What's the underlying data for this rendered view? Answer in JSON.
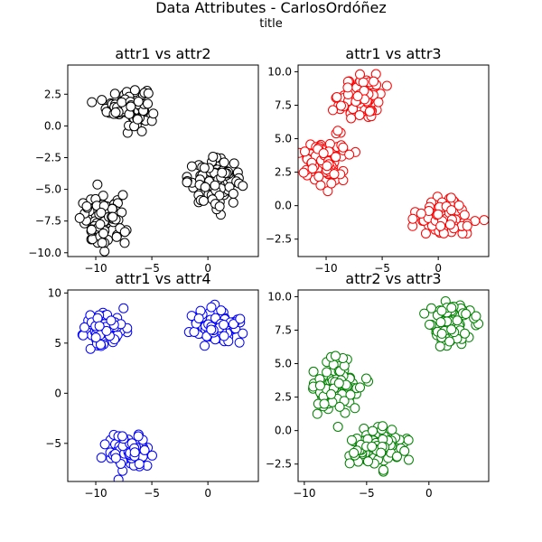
{
  "figure": {
    "suptitle": "Data Attributes - CarlosOrdóñez",
    "subtitle": "title"
  },
  "chart_data": [
    {
      "type": "scatter",
      "title": "attr1 vs attr2",
      "xlabel": "",
      "ylabel": "",
      "xlim": [
        -12.5,
        4.5
      ],
      "ylim": [
        -10.3,
        4.8
      ],
      "xticks": [
        -10,
        -5,
        0
      ],
      "yticks": [
        -10.0,
        -7.5,
        -5.0,
        -2.5,
        0.0,
        2.5
      ],
      "grid": false,
      "marker_color": "#000000",
      "clusters": [
        {
          "cx": -7.2,
          "cy": 1.6,
          "sx": 0.9,
          "sy": 0.75,
          "n": 95
        },
        {
          "cx": 0.6,
          "cy": -4.4,
          "sx": 1.2,
          "sy": 0.85,
          "n": 95
        },
        {
          "cx": -9.3,
          "cy": -7.6,
          "sx": 1.0,
          "sy": 1.0,
          "n": 95
        }
      ]
    },
    {
      "type": "scatter",
      "title": "attr1 vs attr3",
      "xlabel": "",
      "ylabel": "",
      "xlim": [
        -12.5,
        4.5
      ],
      "ylim": [
        -3.8,
        10.5
      ],
      "xticks": [
        -10,
        -5,
        0
      ],
      "yticks": [
        -2.5,
        0.0,
        2.5,
        5.0,
        7.5,
        10.0
      ],
      "grid": false,
      "marker_color": "#ff0000",
      "clusters": [
        {
          "cx": -7.0,
          "cy": 8.0,
          "sx": 0.95,
          "sy": 0.85,
          "n": 95
        },
        {
          "cx": -10.2,
          "cy": 3.3,
          "sx": 1.0,
          "sy": 0.85,
          "n": 95
        },
        {
          "cx": 0.6,
          "cy": -0.9,
          "sx": 1.3,
          "sy": 0.75,
          "n": 95
        }
      ]
    },
    {
      "type": "scatter",
      "title": "attr1 vs attr4",
      "xlabel": "",
      "ylabel": "",
      "xlim": [
        -12.5,
        4.5
      ],
      "ylim": [
        -8.8,
        10.3
      ],
      "xticks": [
        -10,
        -5,
        0
      ],
      "yticks": [
        -5,
        0,
        5,
        10
      ],
      "grid": false,
      "marker_color": "#0000ff",
      "clusters": [
        {
          "cx": -9.3,
          "cy": 6.3,
          "sx": 0.95,
          "sy": 0.85,
          "n": 95
        },
        {
          "cx": 0.8,
          "cy": 6.6,
          "sx": 1.05,
          "sy": 0.85,
          "n": 95
        },
        {
          "cx": -7.0,
          "cy": -5.8,
          "sx": 0.95,
          "sy": 0.85,
          "n": 95
        }
      ]
    },
    {
      "type": "scatter",
      "title": "attr2 vs attr3",
      "xlabel": "",
      "ylabel": "",
      "xlim": [
        -10.5,
        4.8
      ],
      "ylim": [
        -3.8,
        10.5
      ],
      "xticks": [
        -10,
        -5,
        0
      ],
      "yticks": [
        -2.5,
        0.0,
        2.5,
        5.0,
        7.5,
        10.0
      ],
      "grid": false,
      "marker_color": "#008000",
      "clusters": [
        {
          "cx": 1.6,
          "cy": 7.9,
          "sx": 0.85,
          "sy": 0.85,
          "n": 95
        },
        {
          "cx": -7.4,
          "cy": 3.3,
          "sx": 0.95,
          "sy": 0.9,
          "n": 95
        },
        {
          "cx": -4.3,
          "cy": -1.2,
          "sx": 1.1,
          "sy": 0.8,
          "n": 95
        }
      ]
    }
  ]
}
